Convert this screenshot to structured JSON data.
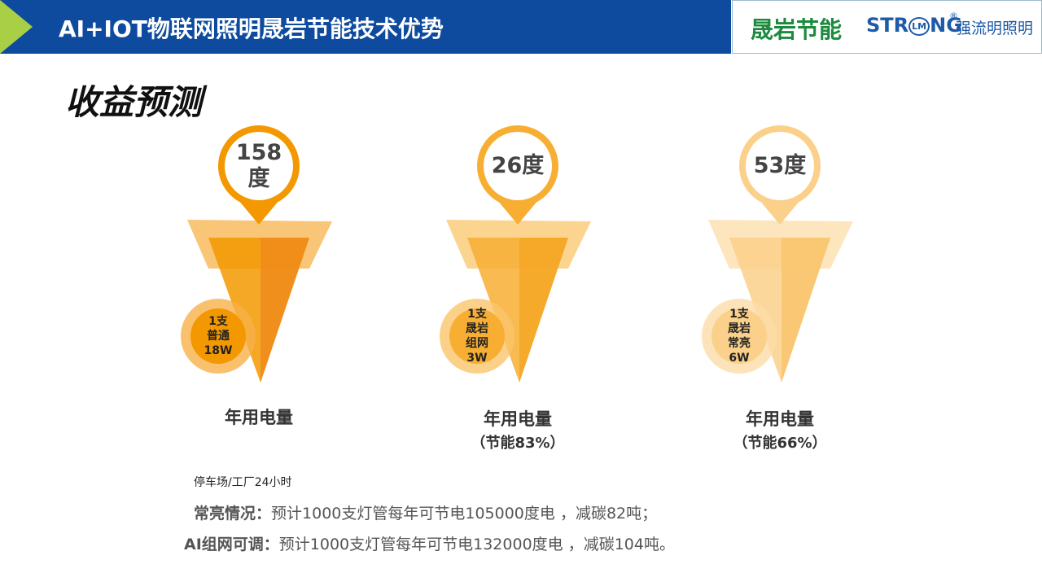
{
  "header": {
    "title": "AI+IOT物联网照明晟岩节能技术优势",
    "logo": {
      "brand_cn": "晟岩节能",
      "brand_en_start": "STR",
      "brand_en_mark": "LM",
      "brand_en_end": "NG",
      "registered": "®",
      "tagline": "强流明照明"
    }
  },
  "section_title": "收益预测",
  "items": [
    {
      "bubble": "158度",
      "lamp": [
        "1支",
        "普通",
        "18W"
      ],
      "caption": "年用电量"
    },
    {
      "bubble": "26度",
      "lamp": [
        "1支",
        "晟岩",
        "组网",
        "3W"
      ],
      "caption": "年用电量",
      "saving": "（节能83%）"
    },
    {
      "bubble": "53度",
      "lamp": [
        "1支",
        "晟岩",
        "常亮",
        "6W"
      ],
      "caption": "年用电量",
      "saving": "（节能66%）"
    }
  ],
  "footer": {
    "note": "停车场/工厂24小时",
    "rows": [
      {
        "label": "常亮情况：",
        "text": "预计1000支灯管每年可节电105000度电 ，减碳82吨；"
      },
      {
        "label": "AI组网可调：",
        "text": "预计1000支灯管每年可节电132000度电 ，减碳104吨。"
      }
    ]
  }
}
